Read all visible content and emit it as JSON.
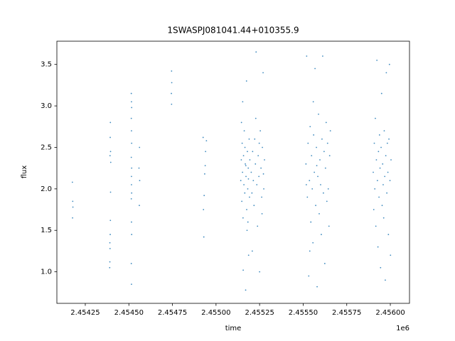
{
  "chart_data": {
    "type": "scatter",
    "title": "1SWASPJ081041.44+010355.9",
    "xlabel": "time",
    "ylabel": "flux",
    "x_offset_label": "1e6",
    "color": "#1f77b4",
    "grid": false,
    "xlim": [
      2454087,
      2456110
    ],
    "ylim": [
      0.62,
      3.78
    ],
    "xticks": [
      {
        "value": 2454250,
        "label": "2.45425"
      },
      {
        "value": 2454500,
        "label": "2.45450"
      },
      {
        "value": 2454750,
        "label": "2.45475"
      },
      {
        "value": 2455000,
        "label": "2.45500"
      },
      {
        "value": 2455250,
        "label": "2.45525"
      },
      {
        "value": 2455500,
        "label": "2.45550"
      },
      {
        "value": 2455750,
        "label": "2.45575"
      },
      {
        "value": 2456000,
        "label": "2.45600"
      }
    ],
    "yticks": [
      {
        "value": 1,
        "label": "1.0"
      },
      {
        "value": 1.5,
        "label": "1.5"
      },
      {
        "value": 2,
        "label": "2.0"
      },
      {
        "value": 2.5,
        "label": "2.5"
      },
      {
        "value": 3,
        "label": "3.0"
      },
      {
        "value": 3.5,
        "label": "3.5"
      }
    ],
    "x": [
      2454177,
      2454178,
      2454176,
      2454179,
      2454390,
      2454391,
      2454392,
      2454393,
      2454394,
      2454395,
      2454396,
      2454392,
      2454393,
      2454394,
      2454391,
      2454395,
      2454515,
      2454514,
      2454516,
      2454515,
      2454514,
      2454516,
      2454515,
      2454514,
      2454516,
      2454515,
      2454514,
      2454516,
      2454515,
      2454514,
      2454516,
      2454515,
      2454560,
      2454562,
      2454558,
      2454561,
      2454745,
      2454744,
      2454746,
      2454745,
      2454930,
      2454928,
      2454932,
      2454935,
      2454938,
      2454940,
      2454926,
      2454945,
      2455142,
      2455145,
      2455148,
      2455150,
      2455152,
      2455155,
      2455158,
      2455160,
      2455162,
      2455165,
      2455168,
      2455170,
      2455172,
      2455175,
      2455178,
      2455180,
      2455182,
      2455185,
      2455187,
      2455190,
      2455192,
      2455194,
      2455146,
      2455156,
      2455166,
      2455176,
      2455186,
      2455153,
      2455171,
      2455183,
      2455202,
      2455206,
      2455210,
      2455214,
      2455218,
      2455222,
      2455226,
      2455230,
      2455234,
      2455238,
      2455242,
      2455246,
      2455250,
      2455254,
      2455258,
      2455262,
      2455266,
      2455270,
      2455274,
      2455278,
      2455208,
      2455228,
      2455248,
      2455264,
      2455272,
      2455516,
      2455520,
      2455524,
      2455528,
      2455532,
      2455536,
      2455540,
      2455544,
      2455548,
      2455552,
      2455556,
      2455560,
      2455564,
      2455568,
      2455572,
      2455576,
      2455580,
      2455584,
      2455588,
      2455592,
      2455596,
      2455600,
      2455604,
      2455608,
      2455612,
      2455616,
      2455620,
      2455624,
      2455628,
      2455632,
      2455636,
      2455640,
      2455644,
      2455648,
      2455652,
      2455656,
      2455518,
      2455538,
      2455558,
      2455578,
      2455902,
      2455905,
      2455908,
      2455911,
      2455914,
      2455917,
      2455920,
      2455923,
      2455926,
      2455929,
      2455932,
      2455935,
      2455938,
      2455941,
      2455944,
      2455947,
      2455950,
      2455953,
      2455956,
      2455959,
      2455962,
      2455965,
      2455968,
      2455971,
      2455974,
      2455977,
      2455980,
      2455983,
      2455986,
      2455989,
      2455992,
      2455995,
      2455998,
      2456001,
      2456004
    ],
    "values": [
      1.65,
      1.85,
      2.08,
      1.78,
      1.05,
      1.12,
      1.28,
      1.45,
      1.62,
      1.96,
      2.32,
      2.4,
      2.62,
      2.8,
      1.35,
      2.45,
      0.85,
      1.1,
      1.45,
      1.6,
      1.88,
      1.95,
      2.15,
      2.38,
      2.55,
      2.7,
      2.85,
      2.98,
      3.05,
      3.15,
      2.25,
      2.05,
      1.8,
      2.1,
      2.25,
      2.5,
      3.02,
      3.15,
      3.28,
      3.42,
      1.42,
      1.75,
      1.92,
      2.18,
      2.28,
      2.45,
      2.62,
      2.58,
      2.1,
      2.35,
      1.85,
      2.55,
      2.2,
      1.65,
      2.4,
      2.05,
      2.7,
      1.95,
      2.3,
      0.78,
      2.15,
      3.3,
      1.5,
      2.45,
      2.0,
      2.25,
      1.2,
      2.6,
      1.9,
      2.35,
      2.8,
      1.02,
      2.5,
      1.75,
      2.12,
      3.05,
      2.28,
      1.6,
      2.2,
      1.95,
      2.45,
      2.1,
      1.8,
      2.6,
      2.3,
      3.65,
      2.05,
      1.55,
      2.4,
      2.15,
      1.0,
      2.7,
      2.25,
      1.9,
      2.5,
      3.4,
      2.0,
      2.35,
      1.25,
      2.85,
      2.55,
      1.7,
      2.18,
      2.3,
      3.6,
      1.9,
      2.55,
      0.95,
      2.1,
      2.75,
      1.6,
      2.4,
      2.0,
      1.35,
      2.65,
      2.2,
      3.45,
      1.8,
      2.5,
      0.82,
      2.15,
      2.9,
      1.7,
      2.35,
      2.05,
      1.45,
      2.6,
      3.6,
      1.95,
      2.45,
      1.1,
      2.25,
      2.8,
      1.85,
      2.55,
      2.0,
      1.55,
      2.4,
      2.7,
      2.05,
      1.25,
      3.05,
      2.28,
      2.2,
      1.75,
      2.55,
      2.0,
      2.85,
      1.55,
      2.35,
      3.55,
      2.1,
      1.3,
      2.45,
      1.9,
      2.65,
      2.25,
      1.05,
      2.5,
      3.15,
      1.8,
      2.3,
      2.05,
      1.65,
      2.7,
      2.15,
      0.9,
      2.4,
      3.4,
      1.95,
      2.55,
      2.2,
      1.45,
      2.6,
      3.5,
      2.1,
      1.2,
      2.35
    ]
  }
}
